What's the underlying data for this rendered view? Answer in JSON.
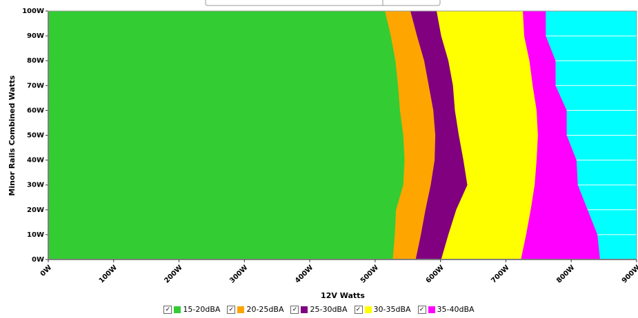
{
  "chart_data": {
    "type": "noise-map",
    "x_label": "12V Watts",
    "y_label": "Minor Rails Combined Watts",
    "y": [
      0,
      10,
      20,
      30,
      40,
      50,
      60,
      70,
      80,
      90,
      100
    ],
    "series": [
      {
        "name": "15-20dBA",
        "color": "#33cc33",
        "values": [
          527,
          530,
          532,
          543,
          545,
          543,
          538,
          535,
          531,
          524,
          515
        ]
      },
      {
        "name": "20-25dBA",
        "color": "#ffa500",
        "values": [
          562,
          570,
          577,
          585,
          591,
          592,
          589,
          582,
          575,
          564,
          554
        ]
      },
      {
        "name": "25-30dBA",
        "color": "#800080",
        "values": [
          601,
          612,
          624,
          641,
          635,
          628,
          622,
          619,
          612,
          601,
          594
        ]
      },
      {
        "name": "30-35dBA",
        "color": "#ffff00",
        "values": [
          723,
          731,
          738,
          744,
          747,
          749,
          747,
          741,
          736,
          728,
          726
        ]
      },
      {
        "name": "35-40dBA",
        "color": "#ff00ff",
        "values": [
          844,
          840,
          825,
          810,
          808,
          793,
          793,
          776,
          776,
          761,
          761
        ]
      }
    ],
    "plot_background": "#00ffff",
    "xlim": [
      0,
      900
    ],
    "ylim": [
      0,
      100
    ],
    "xticks": [
      {
        "value": 0,
        "label": "0W"
      },
      {
        "value": 100,
        "label": "100W"
      },
      {
        "value": 200,
        "label": "200W"
      },
      {
        "value": 300,
        "label": "300W"
      },
      {
        "value": 400,
        "label": "400W"
      },
      {
        "value": 500,
        "label": "500W"
      },
      {
        "value": 600,
        "label": "600W"
      },
      {
        "value": 700,
        "label": "700W"
      },
      {
        "value": 800,
        "label": "800W"
      },
      {
        "value": 900,
        "label": "900W"
      }
    ],
    "yticks": [
      {
        "value": 0,
        "label": "0W"
      },
      {
        "value": 10,
        "label": "10W"
      },
      {
        "value": 20,
        "label": "20W"
      },
      {
        "value": 30,
        "label": "30W"
      },
      {
        "value": 40,
        "label": "40W"
      },
      {
        "value": 50,
        "label": "50W"
      },
      {
        "value": 60,
        "label": "60W"
      },
      {
        "value": 70,
        "label": "70W"
      },
      {
        "value": 80,
        "label": "80W"
      },
      {
        "value": 90,
        "label": "90W"
      },
      {
        "value": 100,
        "label": "100W"
      }
    ],
    "grid": true
  }
}
